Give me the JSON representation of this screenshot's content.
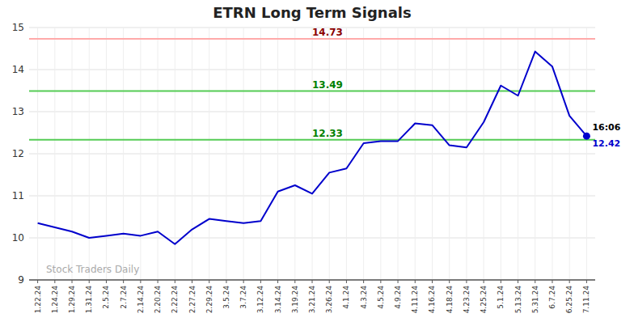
{
  "chart_data": {
    "type": "line",
    "title": "ETRN Long Term Signals",
    "categories": [
      "1.22.24",
      "1.24.24",
      "1.29.24",
      "1.31.24",
      "2.5.24",
      "2.7.24",
      "2.14.24",
      "2.20.24",
      "2.22.24",
      "2.27.24",
      "2.29.24",
      "3.5.24",
      "3.7.24",
      "3.12.24",
      "3.14.24",
      "3.19.24",
      "3.21.24",
      "3.26.24",
      "4.1.24",
      "4.3.24",
      "4.5.24",
      "4.9.24",
      "4.11.24",
      "4.16.24",
      "4.18.24",
      "4.23.24",
      "4.25.24",
      "5.1.24",
      "5.13.24",
      "5.31.24",
      "6.7.24",
      "6.25.24",
      "7.11.24"
    ],
    "values": [
      10.35,
      10.25,
      10.15,
      10.0,
      10.05,
      10.1,
      10.05,
      10.15,
      9.85,
      10.2,
      10.45,
      10.4,
      10.35,
      10.4,
      11.1,
      11.25,
      11.05,
      11.55,
      11.65,
      12.25,
      12.3,
      12.3,
      12.72,
      12.68,
      12.2,
      12.15,
      12.75,
      13.62,
      13.38,
      14.43,
      14.07,
      12.9,
      12.42
    ],
    "color": "#0000cc",
    "reference_lines": [
      {
        "value": 14.73,
        "label": "14.73",
        "color": "#ffaaaa",
        "label_color": "darkred"
      },
      {
        "value": 13.49,
        "label": "13.49",
        "color": "#55cc55",
        "label_color": "green"
      },
      {
        "value": 12.33,
        "label": "12.33",
        "color": "#55cc55",
        "label_color": "green"
      }
    ],
    "annotations": [
      "16:06",
      "12.42"
    ],
    "watermark": "Stock Traders Daily",
    "ylim": [
      9,
      15
    ],
    "yticks": [
      9,
      10,
      11,
      12,
      13,
      14,
      15
    ],
    "grid": true
  }
}
